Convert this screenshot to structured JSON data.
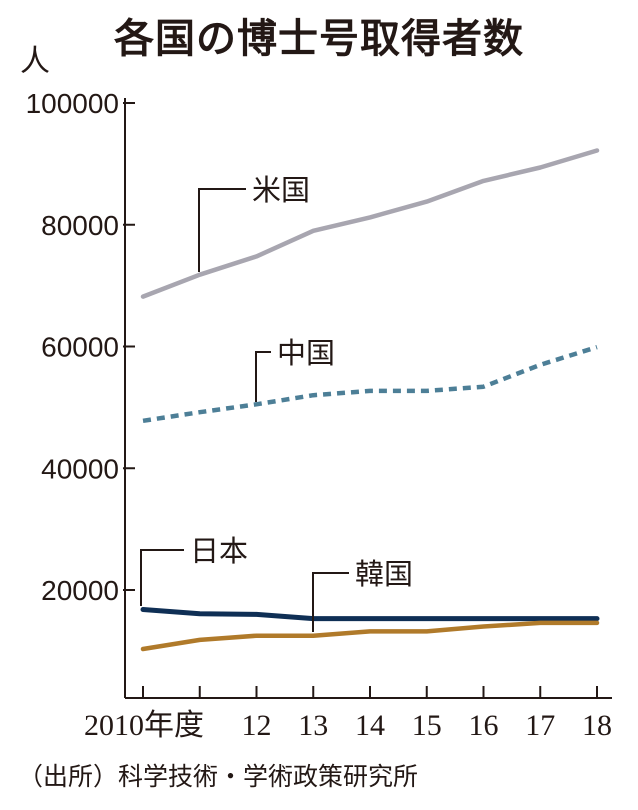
{
  "chart_data": {
    "type": "line",
    "title": "各国の博士号取得者数",
    "unit_label": "人",
    "source": "（出所）科学技術・学術政策研究所",
    "ylim": [
      0,
      100000
    ],
    "yticks": [
      20000,
      40000,
      60000,
      80000,
      100000
    ],
    "ytick_labels": [
      "20000",
      "40000",
      "60000",
      "80000",
      "100000"
    ],
    "x": [
      2010,
      2011,
      2012,
      2013,
      2014,
      2015,
      2016,
      2017,
      2018
    ],
    "xtick_labels": [
      "2010年度",
      "",
      "12",
      "13",
      "14",
      "15",
      "16",
      "17",
      "18"
    ],
    "grid": false,
    "series": [
      {
        "name": "米国",
        "color": "#a8a6b0",
        "dash": false,
        "values": [
          68200,
          71800,
          74800,
          79000,
          81200,
          83800,
          87200,
          89400,
          92200
        ]
      },
      {
        "name": "中国",
        "color": "#4d7f97",
        "dash": true,
        "values": [
          47800,
          49200,
          50500,
          52000,
          52700,
          52700,
          53400,
          57000,
          59900
        ]
      },
      {
        "name": "日本",
        "color": "#0f2f55",
        "dash": false,
        "values": [
          16800,
          16100,
          16000,
          15300,
          15300,
          15300,
          15300,
          15300,
          15300
        ]
      },
      {
        "name": "韓国",
        "color": "#b07a2a",
        "dash": false,
        "values": [
          10300,
          11800,
          12500,
          12500,
          13200,
          13200,
          14000,
          14600,
          14600
        ]
      }
    ]
  }
}
